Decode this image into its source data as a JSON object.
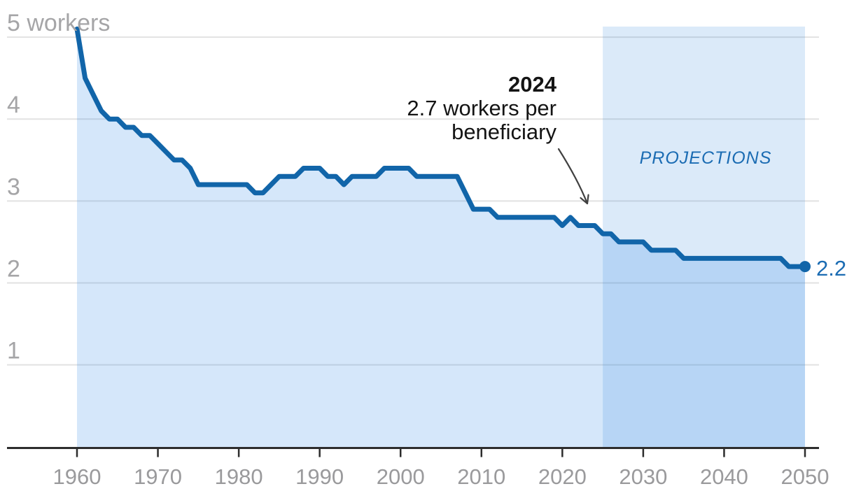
{
  "chart_data": {
    "type": "area",
    "title": "",
    "ylabel": "workers",
    "x_unit": "year",
    "year_start": 1960,
    "year_step": 1,
    "values": [
      5.1,
      4.5,
      4.3,
      4.1,
      4.0,
      4.0,
      3.9,
      3.9,
      3.8,
      3.8,
      3.7,
      3.6,
      3.5,
      3.5,
      3.4,
      3.2,
      3.2,
      3.2,
      3.2,
      3.2,
      3.2,
      3.2,
      3.1,
      3.1,
      3.2,
      3.3,
      3.3,
      3.3,
      3.4,
      3.4,
      3.4,
      3.3,
      3.3,
      3.2,
      3.3,
      3.3,
      3.3,
      3.3,
      3.4,
      3.4,
      3.4,
      3.4,
      3.3,
      3.3,
      3.3,
      3.3,
      3.3,
      3.3,
      3.1,
      2.9,
      2.9,
      2.9,
      2.8,
      2.8,
      2.8,
      2.8,
      2.8,
      2.8,
      2.8,
      2.8,
      2.7,
      2.8,
      2.7,
      2.7,
      2.7,
      2.6,
      2.6,
      2.5,
      2.5,
      2.5,
      2.5,
      2.4,
      2.4,
      2.4,
      2.4,
      2.3,
      2.3,
      2.3,
      2.3,
      2.3,
      2.3,
      2.3,
      2.3,
      2.3,
      2.3,
      2.3,
      2.3,
      2.3,
      2.2,
      2.2,
      2.2
    ],
    "xlim": [
      1960,
      2050
    ],
    "ylim": [
      0,
      5.35
    ],
    "grid": true,
    "legend": "none",
    "x_ticks": [
      1960,
      1970,
      1980,
      1990,
      2000,
      2010,
      2020,
      2030,
      2040,
      2050
    ],
    "y_ticks": [
      {
        "value": 1,
        "label": "1"
      },
      {
        "value": 2,
        "label": "2"
      },
      {
        "value": 3,
        "label": "3"
      },
      {
        "value": 4,
        "label": "4"
      },
      {
        "value": 5,
        "label": "5 workers"
      }
    ],
    "projection_band": {
      "from": 2025,
      "to": 2050,
      "label": "PROJECTIONS"
    },
    "annotation": {
      "bold_line": "2024",
      "line2": "2.7 workers per",
      "line3": "beneficiary",
      "points_to": {
        "year": 2024,
        "value": 2.7
      }
    },
    "end_point": {
      "year": 2050,
      "value": 2.2,
      "label": "2.2"
    },
    "colors": {
      "line": "#1165a9",
      "area_fill": "rgba(23,121,225,0.18)",
      "projection_band": "rgba(36,126,219,0.165)",
      "grid": "#e2e2e2",
      "axis": "#2d2d2d",
      "x_tick_label": "#9a9a9c",
      "y_tick_label": "#a5a5a7",
      "accent_text": "#1b6cb3",
      "annotation_text": "#141414",
      "arrow": "#404040"
    }
  }
}
